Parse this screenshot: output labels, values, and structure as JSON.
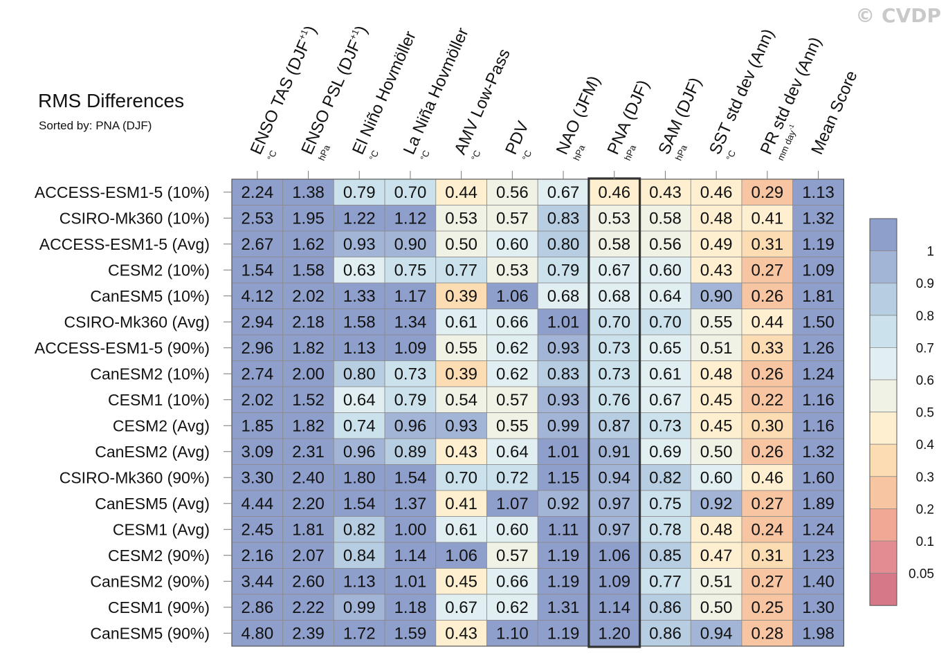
{
  "watermark": "© CVDP",
  "title": "RMS Differences",
  "subtitle": "Sorted by: PNA (DJF)",
  "chart_data": {
    "type": "heatmap",
    "columns": [
      {
        "label": "ENSO TAS (DJF",
        "sup": "+1",
        "close": ")",
        "unit": "°C"
      },
      {
        "label": "ENSO PSL (DJF",
        "sup": "+1",
        "close": ")",
        "unit": "hPa"
      },
      {
        "label": "El Niño Hovmöller",
        "unit": "°C"
      },
      {
        "label": "La Niña Hovmöller",
        "unit": "°C"
      },
      {
        "label": "AMV Low-Pass",
        "unit": "°C"
      },
      {
        "label": "PDV",
        "unit": "°C"
      },
      {
        "label": "NAO (JFM)",
        "unit": "hPa"
      },
      {
        "label": "PNA (DJF)",
        "unit": "hPa"
      },
      {
        "label": "SAM (DJF)",
        "unit": "hPa"
      },
      {
        "label": "SST std dev (Ann)",
        "unit": "°C"
      },
      {
        "label": "PR std dev (Ann)",
        "unit": "mm day",
        "unit_sup": "-1"
      },
      {
        "label": "Mean Score",
        "unit": ""
      }
    ],
    "highlight_column": 7,
    "rows": [
      "ACCESS-ESM1-5 (10%)",
      "CSIRO-Mk360 (10%)",
      "ACCESS-ESM1-5 (Avg)",
      "CESM2 (10%)",
      "CanESM5 (10%)",
      "CSIRO-Mk360 (Avg)",
      "ACCESS-ESM1-5 (90%)",
      "CanESM2 (10%)",
      "CESM1 (10%)",
      "CESM2 (Avg)",
      "CanESM2 (Avg)",
      "CSIRO-Mk360 (90%)",
      "CanESM5 (Avg)",
      "CESM1 (Avg)",
      "CESM2 (90%)",
      "CanESM2 (90%)",
      "CESM1 (90%)",
      "CanESM5 (90%)"
    ],
    "values": [
      [
        "2.24",
        "1.38",
        "0.79",
        "0.70",
        "0.44",
        "0.56",
        "0.67",
        "0.46",
        "0.43",
        "0.46",
        "0.29",
        "1.13"
      ],
      [
        "2.53",
        "1.95",
        "1.22",
        "1.12",
        "0.53",
        "0.57",
        "0.83",
        "0.53",
        "0.58",
        "0.48",
        "0.41",
        "1.32"
      ],
      [
        "2.67",
        "1.62",
        "0.93",
        "0.90",
        "0.50",
        "0.60",
        "0.80",
        "0.58",
        "0.56",
        "0.49",
        "0.31",
        "1.19"
      ],
      [
        "1.54",
        "1.58",
        "0.63",
        "0.75",
        "0.77",
        "0.53",
        "0.79",
        "0.67",
        "0.60",
        "0.43",
        "0.27",
        "1.09"
      ],
      [
        "4.12",
        "2.02",
        "1.33",
        "1.17",
        "0.39",
        "1.06",
        "0.68",
        "0.68",
        "0.64",
        "0.90",
        "0.26",
        "1.81"
      ],
      [
        "2.94",
        "2.18",
        "1.58",
        "1.34",
        "0.61",
        "0.66",
        "1.01",
        "0.70",
        "0.70",
        "0.55",
        "0.44",
        "1.50"
      ],
      [
        "2.96",
        "1.82",
        "1.13",
        "1.09",
        "0.55",
        "0.62",
        "0.93",
        "0.73",
        "0.65",
        "0.51",
        "0.33",
        "1.26"
      ],
      [
        "2.74",
        "2.00",
        "0.80",
        "0.73",
        "0.39",
        "0.62",
        "0.83",
        "0.73",
        "0.61",
        "0.48",
        "0.26",
        "1.24"
      ],
      [
        "2.02",
        "1.52",
        "0.64",
        "0.79",
        "0.54",
        "0.57",
        "0.93",
        "0.76",
        "0.67",
        "0.45",
        "0.22",
        "1.16"
      ],
      [
        "1.85",
        "1.82",
        "0.74",
        "0.96",
        "0.93",
        "0.55",
        "0.99",
        "0.87",
        "0.73",
        "0.45",
        "0.30",
        "1.16"
      ],
      [
        "3.09",
        "2.31",
        "0.96",
        "0.89",
        "0.43",
        "0.64",
        "1.01",
        "0.91",
        "0.69",
        "0.50",
        "0.26",
        "1.32"
      ],
      [
        "3.30",
        "2.40",
        "1.80",
        "1.54",
        "0.70",
        "0.72",
        "1.15",
        "0.94",
        "0.82",
        "0.60",
        "0.46",
        "1.60"
      ],
      [
        "4.44",
        "2.20",
        "1.54",
        "1.37",
        "0.41",
        "1.07",
        "0.92",
        "0.97",
        "0.75",
        "0.92",
        "0.27",
        "1.89"
      ],
      [
        "2.45",
        "1.81",
        "0.82",
        "1.00",
        "0.61",
        "0.60",
        "1.11",
        "0.97",
        "0.78",
        "0.48",
        "0.24",
        "1.24"
      ],
      [
        "2.16",
        "2.07",
        "0.84",
        "1.14",
        "1.06",
        "0.57",
        "1.19",
        "1.06",
        "0.85",
        "0.47",
        "0.31",
        "1.23"
      ],
      [
        "3.44",
        "2.60",
        "1.13",
        "1.01",
        "0.45",
        "0.66",
        "1.19",
        "1.09",
        "0.77",
        "0.51",
        "0.27",
        "1.40"
      ],
      [
        "2.86",
        "2.22",
        "0.99",
        "1.18",
        "0.67",
        "0.62",
        "1.31",
        "1.14",
        "0.86",
        "0.50",
        "0.25",
        "1.30"
      ],
      [
        "4.80",
        "2.39",
        "1.72",
        "1.59",
        "0.43",
        "1.10",
        "1.19",
        "1.20",
        "0.86",
        "0.94",
        "0.28",
        "1.98"
      ]
    ],
    "colorbar": {
      "tick_labels": [
        "1",
        "0.9",
        "0.8",
        "0.7",
        "0.6",
        "0.5",
        "0.4",
        "0.3",
        "0.2",
        "0.1",
        "0.05"
      ],
      "levels": [
        1.0,
        0.9,
        0.8,
        0.7,
        0.6,
        0.5,
        0.4,
        0.3,
        0.2,
        0.1,
        0.05
      ],
      "colors": [
        "#8f9fcb",
        "#a3b5d7",
        "#b7cde2",
        "#cbe2ec",
        "#e1eff3",
        "#f1f2e6",
        "#fdefd0",
        "#fbdcb3",
        "#f8c5a2",
        "#f1a996",
        "#e38c92",
        "#d67887"
      ]
    }
  }
}
